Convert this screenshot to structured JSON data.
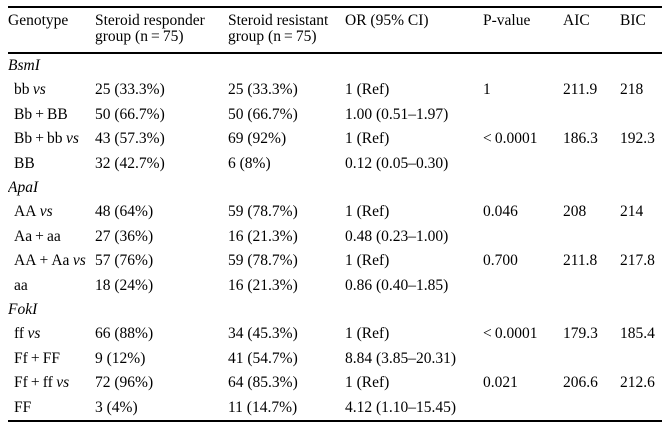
{
  "header": {
    "columns": [
      "Genotype",
      "Steroid responder group (n = 75)",
      "Steroid resistant group (n = 75)",
      "OR (95% CI)",
      "P-value",
      "AIC",
      "BIC"
    ]
  },
  "sections": [
    {
      "name": "BsmI",
      "rows": [
        {
          "label": "bb",
          "suffix": "vs",
          "responder": "25 (33.3%)",
          "resistant": "25 (33.3%)",
          "or": "1 (Ref)",
          "p": "1",
          "aic": "211.9",
          "bic": "218"
        },
        {
          "label": "Bb + BB",
          "suffix": "",
          "responder": "50 (66.7%)",
          "resistant": "50 (66.7%)",
          "or": "1.00 (0.51–1.97)",
          "p": "",
          "aic": "",
          "bic": ""
        },
        {
          "label": "Bb + bb",
          "suffix": "vs",
          "responder": "43 (57.3%)",
          "resistant": "69 (92%)",
          "or": "1 (Ref)",
          "p": "< 0.0001",
          "aic": "186.3",
          "bic": "192.3"
        },
        {
          "label": "BB",
          "suffix": "",
          "responder": "32 (42.7%)",
          "resistant": "6 (8%)",
          "or": "0.12 (0.05–0.30)",
          "p": "",
          "aic": "",
          "bic": ""
        }
      ]
    },
    {
      "name": "ApaI",
      "rows": [
        {
          "label": "AA",
          "suffix": "vs",
          "responder": "48 (64%)",
          "resistant": "59 (78.7%)",
          "or": "1 (Ref)",
          "p": "0.046",
          "aic": "208",
          "bic": "214"
        },
        {
          "label": "Aa + aa",
          "suffix": "",
          "responder": "27 (36%)",
          "resistant": "16 (21.3%)",
          "or": "0.48 (0.23–1.00)",
          "p": "",
          "aic": "",
          "bic": ""
        },
        {
          "label": "AA + Aa",
          "suffix": "vs",
          "responder": "57 (76%)",
          "resistant": "59 (78.7%)",
          "or": "1 (Ref)",
          "p": "0.700",
          "aic": "211.8",
          "bic": "217.8"
        },
        {
          "label": "aa",
          "suffix": "",
          "responder": "18 (24%)",
          "resistant": "16 (21.3%)",
          "or": "0.86 (0.40–1.85)",
          "p": "",
          "aic": "",
          "bic": ""
        }
      ]
    },
    {
      "name": "FokI",
      "rows": [
        {
          "label": "ff",
          "suffix": "vs",
          "responder": "66 (88%)",
          "resistant": "34 (45.3%)",
          "or": "1 (Ref)",
          "p": "< 0.0001",
          "aic": "179.3",
          "bic": "185.4"
        },
        {
          "label": "Ff + FF",
          "suffix": "",
          "responder": "9 (12%)",
          "resistant": "41 (54.7%)",
          "or": "8.84 (3.85–20.31)",
          "p": "",
          "aic": "",
          "bic": ""
        },
        {
          "label": "Ff + ff",
          "suffix": "vs",
          "responder": "72 (96%)",
          "resistant": "64 (85.3%)",
          "or": "1 (Ref)",
          "p": "0.021",
          "aic": "206.6",
          "bic": "212.6"
        },
        {
          "label": "FF",
          "suffix": "",
          "responder": "3 (4%)",
          "resistant": "11 (14.7%)",
          "or": "4.12 (1.10–15.45)",
          "p": "",
          "aic": "",
          "bic": ""
        }
      ]
    }
  ]
}
